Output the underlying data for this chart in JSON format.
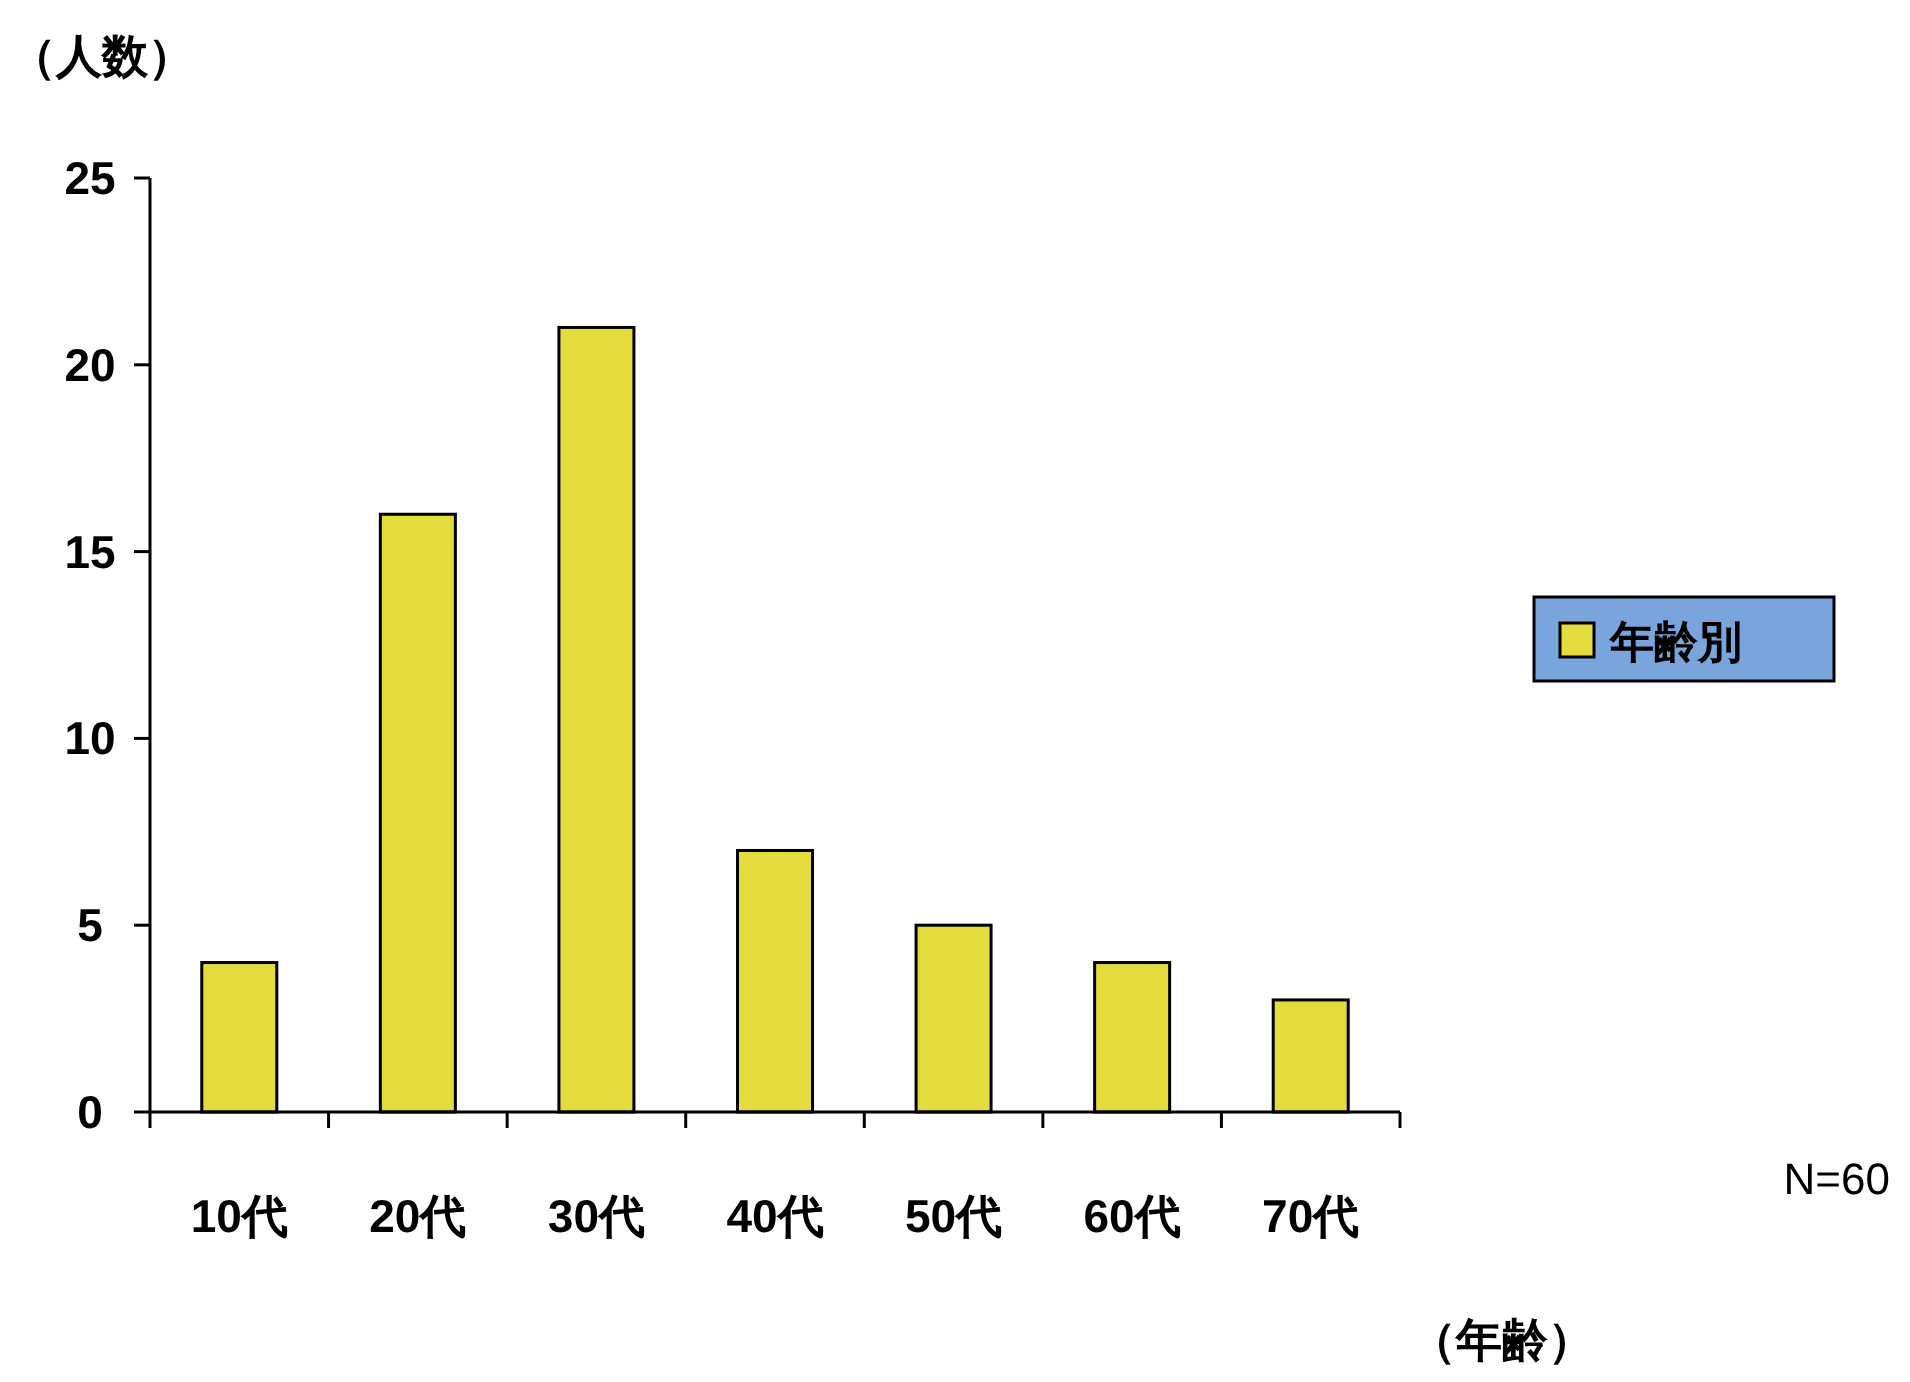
{
  "chart_data": {
    "type": "bar",
    "ylabel": "（人数）",
    "xlabel": "（年齢）",
    "categories": [
      "10代",
      "20代",
      "30代",
      "40代",
      "50代",
      "60代",
      "70代"
    ],
    "series": [
      {
        "name": "年齢別",
        "color": "#e4dc3c",
        "values": [
          4,
          16,
          21,
          7,
          5,
          4,
          3
        ]
      }
    ],
    "ylim": [
      0,
      25
    ],
    "yticks": [
      0,
      5,
      10,
      15,
      20,
      25
    ],
    "grid": false,
    "legend": "right",
    "annotations": [
      "N=60"
    ]
  }
}
